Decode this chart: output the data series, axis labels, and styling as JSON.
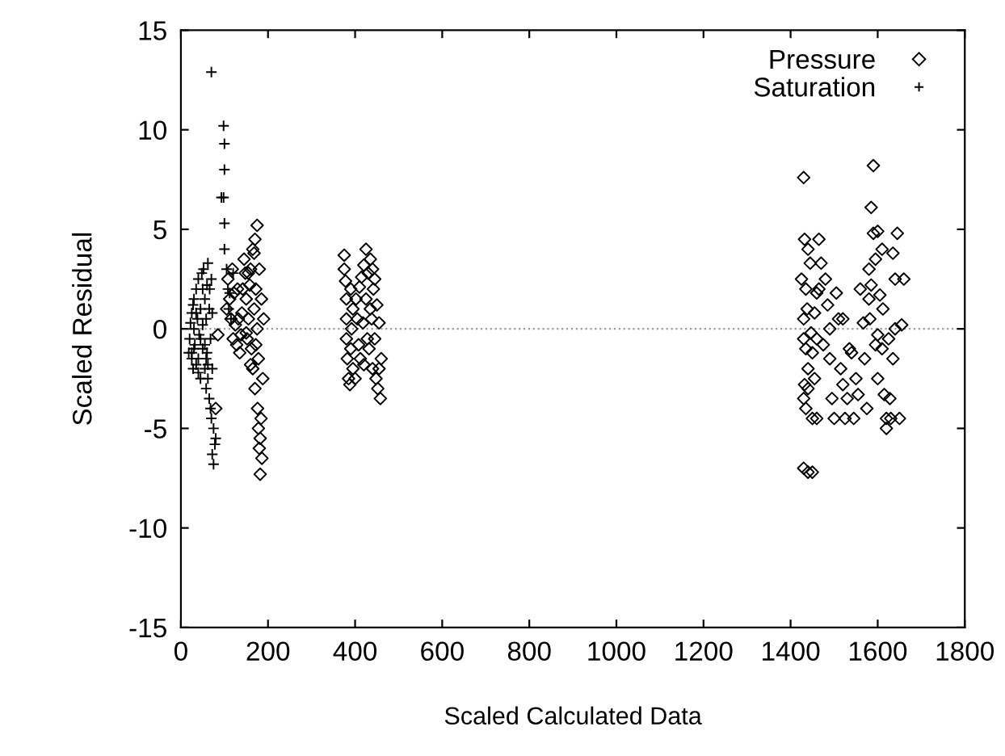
{
  "chart_data": {
    "type": "scatter",
    "xlabel": "Scaled Calculated Data",
    "ylabel": "Scaled Residual",
    "xlim": [
      0,
      1800
    ],
    "xticks": [
      0,
      200,
      400,
      600,
      800,
      1000,
      1200,
      1400,
      1600,
      1800
    ],
    "ylim": [
      -15,
      15
    ],
    "yticks": [
      -15,
      -10,
      -5,
      0,
      5,
      10,
      15
    ],
    "grid": false,
    "legend": "top right",
    "ref_lines": [
      {
        "axis": "y",
        "value": 0,
        "color": "#999999",
        "line_style": "dotted"
      }
    ],
    "series": [
      {
        "name": "Pressure",
        "color": "#000000",
        "marker": "diamond",
        "x": [
          80,
          85,
          105,
          108,
          112,
          115,
          118,
          120,
          122,
          125,
          128,
          132,
          135,
          138,
          140,
          142,
          145,
          148,
          150,
          152,
          155,
          158,
          160,
          162,
          165,
          165,
          168,
          170,
          170,
          172,
          175,
          175,
          176,
          178,
          178,
          180,
          180,
          182,
          182,
          184,
          185,
          186,
          188,
          190,
          160,
          150,
          130,
          155,
          168,
          172,
          375,
          375,
          378,
          380,
          380,
          380,
          382,
          385,
          388,
          390,
          390,
          392,
          395,
          395,
          400,
          402,
          405,
          408,
          410,
          412,
          415,
          418,
          420,
          420,
          425,
          425,
          428,
          430,
          432,
          435,
          435,
          438,
          440,
          440,
          442,
          445,
          448,
          450,
          452,
          455,
          458,
          455,
          460,
          445,
          1430,
          1425,
          1430,
          1440,
          1450,
          1432,
          1440,
          1445,
          1435,
          1438,
          1430,
          1430,
          1435,
          1440,
          1432,
          1430,
          1435,
          1440,
          1450,
          1460,
          1455,
          1450,
          1460,
          1455,
          1465,
          1470,
          1465,
          1480,
          1485,
          1490,
          1490,
          1500,
          1495,
          1505,
          1510,
          1515,
          1520,
          1525,
          1530,
          1535,
          1540,
          1545,
          1550,
          1555,
          1560,
          1570,
          1575,
          1580,
          1580,
          1582,
          1585,
          1585,
          1590,
          1590,
          1595,
          1600,
          1600,
          1605,
          1610,
          1610,
          1615,
          1620,
          1620,
          1625,
          1628,
          1630,
          1635,
          1640,
          1640,
          1645,
          1650,
          1655,
          1660,
          1600,
          1612,
          1460,
          1475,
          1520,
          1635,
          1447,
          1567,
          1595
        ],
        "values": [
          -4,
          -0.3,
          1,
          2.5,
          1.5,
          0.5,
          3,
          -0.5,
          1.8,
          0.2,
          -0.8,
          0.5,
          -1.2,
          -0.3,
          0.8,
          2,
          3.5,
          2.8,
          1.5,
          -0.5,
          0.5,
          2.2,
          3,
          -1,
          4,
          -2,
          1,
          4.5,
          -3,
          2,
          0,
          5.2,
          -4,
          -5,
          -1.5,
          -6,
          3,
          -7.3,
          -5.5,
          -4.5,
          1.5,
          -6.5,
          -2.5,
          0.5,
          -1.8,
          -0.2,
          2,
          2.8,
          3.8,
          -0.8,
          3.7,
          3,
          2.4,
          1.5,
          0.5,
          -0.5,
          -1.5,
          -2.5,
          -2.8,
          2,
          -1,
          0,
          -2,
          1,
          -2.5,
          1.5,
          0.5,
          -0.8,
          2.1,
          -1.5,
          2.6,
          0.3,
          3.2,
          -1.8,
          4,
          1.5,
          -0.5,
          2.8,
          -1,
          3.5,
          1,
          0.5,
          3,
          -2,
          2,
          -0.5,
          -2.5,
          1.2,
          -3,
          -2,
          -3.5,
          0.3,
          -1.5,
          2.5,
          7.6,
          2.5,
          -7,
          -7.2,
          -7.2,
          4.5,
          4,
          3.3,
          2,
          1,
          0.5,
          -0.5,
          -1,
          -2,
          -2.8,
          -3.5,
          -4,
          -3,
          -4.5,
          -4.5,
          -2.5,
          -1.2,
          -0.5,
          0.8,
          2,
          3.3,
          4.5,
          2.5,
          1.2,
          0,
          -1.5,
          -4.5,
          -3.5,
          1.8,
          0.5,
          -2,
          -2.8,
          -4.5,
          -3.5,
          -1,
          -1.2,
          -4.5,
          -2.5,
          -3.3,
          2,
          -1.5,
          -4,
          3,
          1.5,
          0.5,
          2.2,
          6.1,
          8.2,
          4.8,
          3.5,
          -0.3,
          -2.5,
          1.7,
          -1,
          4,
          -3.3,
          -5,
          -4.5,
          -0.5,
          -3.5,
          -4.5,
          -1.5,
          0,
          2.5,
          4.8,
          -4.5,
          0.2,
          2.5,
          4.9,
          1,
          1.8,
          -0.8,
          0.5,
          3.8,
          -0.2,
          0.3,
          -0.8
        ]
      },
      {
        "name": "Saturation",
        "color": "#000000",
        "marker": "cross",
        "x": [
          20,
          22,
          25,
          25,
          28,
          30,
          30,
          32,
          35,
          35,
          38,
          40,
          40,
          42,
          45,
          45,
          48,
          50,
          50,
          52,
          55,
          55,
          58,
          58,
          60,
          60,
          62,
          62,
          65,
          65,
          68,
          68,
          70,
          70,
          72,
          72,
          75,
          75,
          72,
          78,
          80,
          70,
          98,
          100,
          100,
          93,
          98,
          100,
          100,
          105,
          108,
          110,
          115,
          120,
          112,
          25,
          45,
          55,
          35,
          28,
          62,
          66,
          18,
          50,
          40,
          30,
          58
        ],
        "values": [
          -0.5,
          0.3,
          -1.2,
          0.8,
          -2,
          0,
          1.5,
          -0.8,
          -1.8,
          2,
          0.5,
          -1.5,
          2.5,
          -0.3,
          1,
          -2.5,
          2.8,
          -1,
          0.2,
          3,
          -2,
          1.5,
          -3,
          0.5,
          2.2,
          -1.2,
          3.3,
          -2.5,
          -3.5,
          1,
          -0.5,
          -4,
          2.5,
          -4.5,
          -2,
          0.8,
          -5,
          -6.8,
          -6.3,
          -5.8,
          -5.5,
          12.9,
          10.2,
          9.3,
          8,
          6.6,
          6.6,
          5.3,
          4,
          3,
          2,
          1,
          0.5,
          2.8,
          1.8,
          -1.5,
          -0.5,
          -0.8,
          0.8,
          1.2,
          -1.8,
          2,
          -1.2,
          2,
          -2.2,
          -1,
          -1.5
        ]
      }
    ]
  }
}
